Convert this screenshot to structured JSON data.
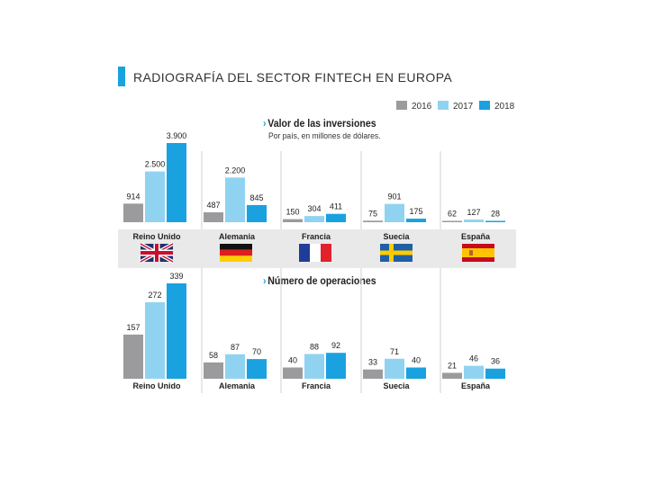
{
  "header": {
    "title": "RADIOGRAFÍA DEL SECTOR FINTECH EN EUROPA"
  },
  "legend": [
    {
      "label": "2016",
      "color": "#9b9b9d"
    },
    {
      "label": "2017",
      "color": "#8fd3f1"
    },
    {
      "label": "2018",
      "color": "#1aa1e0"
    }
  ],
  "flags": [
    "uk-flag",
    "germany-flag",
    "france-flag",
    "sweden-flag",
    "spain-flag"
  ],
  "chart_data": [
    {
      "type": "bar",
      "title": "Valor de las inversiones",
      "subtitle": "Por país, en millones de dólares.",
      "categories": [
        "Reino Unido",
        "Alemania",
        "Francia",
        "Suecia",
        "España"
      ],
      "series": [
        {
          "name": "2016",
          "values": [
            914,
            487,
            150,
            75,
            62
          ],
          "labels": [
            "914",
            "487",
            "150",
            "75",
            "62"
          ]
        },
        {
          "name": "2017",
          "values": [
            2500,
            2200,
            304,
            901,
            127
          ],
          "labels": [
            "2.500",
            "2.200",
            "304",
            "901",
            "127"
          ]
        },
        {
          "name": "2018",
          "values": [
            3900,
            845,
            411,
            175,
            28
          ],
          "labels": [
            "3.900",
            "845",
            "411",
            "175",
            "28"
          ]
        }
      ]
    },
    {
      "type": "bar",
      "title": "Número de operaciones",
      "categories": [
        "Reino Unido",
        "Alemania",
        "Francia",
        "Suecia",
        "España"
      ],
      "series": [
        {
          "name": "2016",
          "values": [
            157,
            58,
            40,
            33,
            21
          ],
          "labels": [
            "157",
            "58",
            "40",
            "33",
            "21"
          ]
        },
        {
          "name": "2017",
          "values": [
            272,
            87,
            88,
            71,
            46
          ],
          "labels": [
            "272",
            "87",
            "88",
            "71",
            "46"
          ]
        },
        {
          "name": "2018",
          "values": [
            339,
            70,
            92,
            40,
            36
          ],
          "labels": [
            "339",
            "70",
            "92",
            "40",
            "36"
          ]
        }
      ]
    }
  ]
}
